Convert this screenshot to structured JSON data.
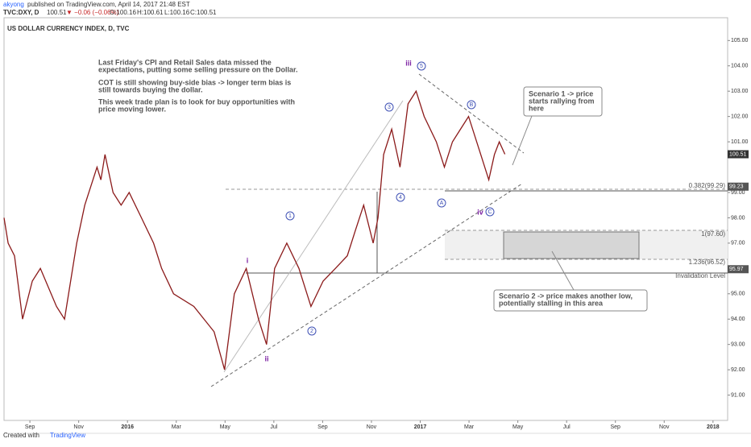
{
  "header": {
    "author": "akyong",
    "published": "published on TradingView.com, April 14, 2017 21:48 EST",
    "symbol": "TVC:DXY, D",
    "last": "100.51",
    "change": "▼ −0.06 (−0.06%)",
    "o": "O:100.16",
    "h": "H:100.61",
    "l": "L:100.16",
    "c": "C:100.51"
  },
  "chart_data": {
    "type": "line",
    "title": "US DOLLAR CURRENCY INDEX, D, TVC",
    "series": [
      {
        "name": "DXY",
        "color": "#8b1a1a",
        "x": [
          -1.06,
          -0.89,
          -0.63,
          -0.3,
          0.1,
          0.43,
          1.09,
          1.42,
          1.92,
          2.25,
          2.75,
          2.91,
          3.08,
          3.41,
          3.74,
          4.07,
          4.57,
          5.07,
          5.4,
          5.89,
          6.72,
          7.55,
          7.98,
          8.38,
          8.87,
          9.37,
          9.7,
          10.03,
          10.53,
          11.03,
          11.52,
          12.02,
          12.52,
          13.01,
          13.34,
          13.68,
          14.07,
          14.27,
          14.5,
          14.83,
          15.17,
          15.5,
          15.83,
          16.16,
          16.66,
          16.99,
          17.32,
          17.65,
          17.98,
          18.48,
          18.81,
          19.04,
          19.24,
          19.47
        ],
        "values": [
          98.0,
          97.0,
          96.5,
          94.0,
          95.5,
          96.0,
          94.5,
          94.0,
          97.0,
          98.5,
          100.0,
          99.5,
          100.5,
          99.0,
          98.5,
          99.0,
          98.0,
          97.0,
          96.0,
          95.0,
          94.5,
          93.5,
          92.0,
          95.0,
          96.0,
          94.0,
          93.0,
          96.0,
          97.0,
          96.0,
          94.5,
          95.5,
          96.0,
          96.5,
          97.5,
          98.5,
          97.0,
          98.0,
          100.5,
          101.5,
          100.0,
          102.5,
          103.0,
          102.0,
          101.0,
          100.0,
          101.0,
          101.5,
          102.0,
          100.5,
          99.5,
          100.5,
          101.0,
          100.51
        ]
      }
    ],
    "xlim": [
      -1.06,
      28.6
    ],
    "xticks": [
      {
        "value": 0,
        "label": "Sep"
      },
      {
        "value": 2,
        "label": "Nov"
      },
      {
        "value": 4,
        "label": "2016"
      },
      {
        "value": 6,
        "label": "Mar"
      },
      {
        "value": 8,
        "label": "May"
      },
      {
        "value": 10,
        "label": "Jul"
      },
      {
        "value": 12,
        "label": "Sep"
      },
      {
        "value": 14,
        "label": "Nov"
      },
      {
        "value": 16,
        "label": "2017"
      },
      {
        "value": 18,
        "label": "Mar"
      },
      {
        "value": 20,
        "label": "May"
      },
      {
        "value": 22,
        "label": "Jul"
      },
      {
        "value": 24,
        "label": "Sep"
      },
      {
        "value": 26,
        "label": "Nov"
      },
      {
        "value": 28,
        "label": "2018"
      }
    ],
    "ylim": [
      90.0,
      105.9
    ],
    "yticks": [
      {
        "value": 91,
        "label": "91.00"
      },
      {
        "value": 92,
        "label": "92.00"
      },
      {
        "value": 93,
        "label": "93.00"
      },
      {
        "value": 94,
        "label": "94.00"
      },
      {
        "value": 95,
        "label": "95.00"
      },
      {
        "value": 96,
        "label": "96.00"
      },
      {
        "value": 97,
        "label": "97.00"
      },
      {
        "value": 98,
        "label": "98.00"
      },
      {
        "value": 99,
        "label": "99.00"
      },
      {
        "value": 101,
        "label": "101.00"
      },
      {
        "value": 102,
        "label": "102.00"
      },
      {
        "value": 103,
        "label": "103.00"
      },
      {
        "value": 104,
        "label": "104.00"
      },
      {
        "value": 105,
        "label": "105.00"
      }
    ],
    "price_labels": [
      {
        "value": 100.51,
        "label": "100.51",
        "color": "#333333"
      },
      {
        "value": 99.23,
        "label": "99.23",
        "color": "#555555"
      },
      {
        "value": 95.97,
        "label": "95.97",
        "color": "#555555"
      }
    ],
    "grid": false
  },
  "annotations": {
    "note": [
      "Last Friday's CPI and Retail Sales data missed the",
      "expectations, putting some selling pressure on the Dollar.",
      "COT is still showing buy-side bias -> longer term bias is",
      "still towards buying the dollar.",
      "This week trade plan is to look for buy opportunities with",
      "price moving lower."
    ],
    "scenario1": [
      "Scenario 1 -> price",
      "starts rallying from",
      "here"
    ],
    "scenario2": [
      "Scenario 2 -> price makes another low,",
      "potentially stalling in this area"
    ],
    "levels": [
      "0.382(99.29)",
      "1(97.60)",
      "1.236(96.52)",
      "Invalidation Level"
    ],
    "waves": [
      "i",
      "ii",
      "iii",
      "iv",
      "1",
      "2",
      "3",
      "4",
      "5",
      "A",
      "B",
      "C"
    ]
  },
  "footer": {
    "created": "Created with",
    "brand": "TradingView"
  }
}
